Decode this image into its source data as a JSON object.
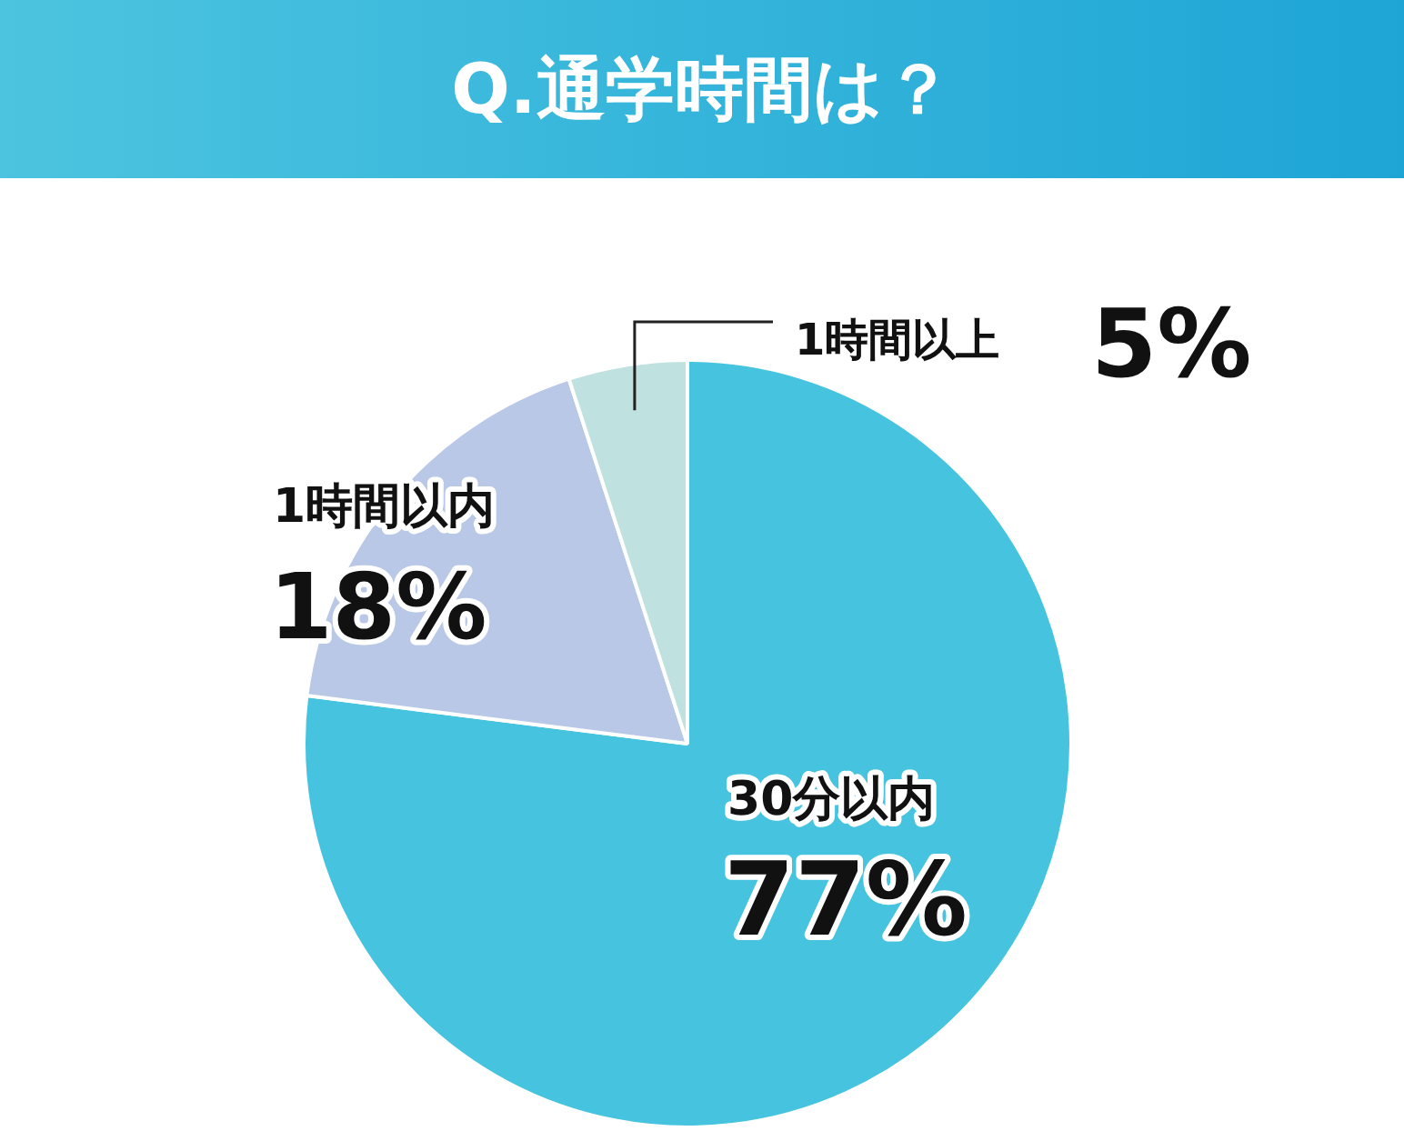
{
  "chart_data": {
    "type": "pie",
    "title": "Q.通学時間は？",
    "categories": [
      "30分以内",
      "1時間以内",
      "1時間以上"
    ],
    "values": [
      77,
      18,
      5
    ],
    "value_labels": [
      "77%",
      "18%",
      "5%"
    ],
    "colors": [
      "#45c3df",
      "#b8c8e6",
      "#bfe2e0"
    ]
  }
}
